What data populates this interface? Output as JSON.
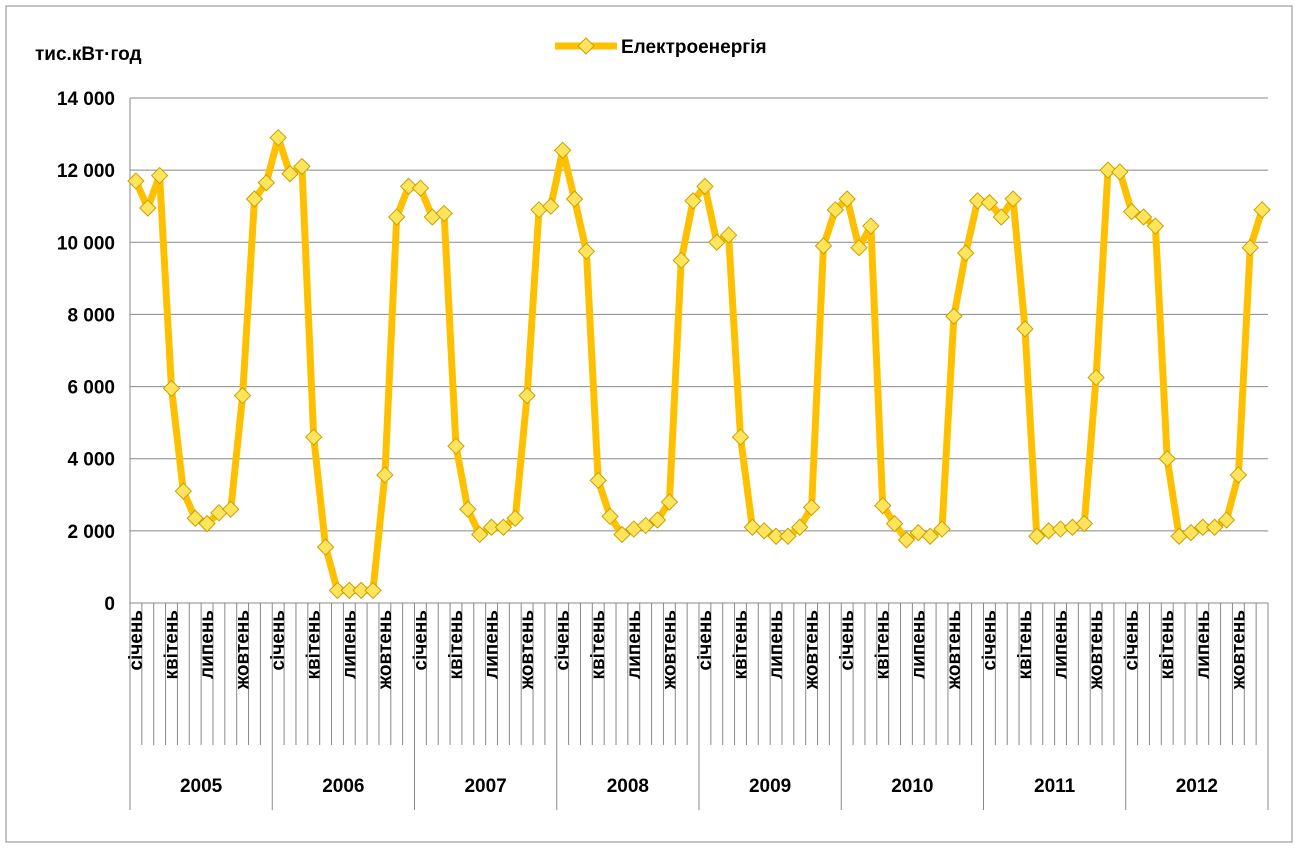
{
  "chart_data": {
    "type": "line",
    "y_axis_label": "тис.кВт·год",
    "categories": [
      "січень",
      null,
      null,
      "квітень",
      null,
      null,
      "липень",
      null,
      null,
      "жовтень",
      null,
      null,
      "січень",
      null,
      null,
      "квітень",
      null,
      null,
      "липень",
      null,
      null,
      "жовтень",
      null,
      null,
      "січень",
      null,
      null,
      "квітень",
      null,
      null,
      "липень",
      null,
      null,
      "жовтень",
      null,
      null,
      "січень",
      null,
      null,
      "квітень",
      null,
      null,
      "липень",
      null,
      null,
      "жовтень",
      null,
      null,
      "січень",
      null,
      null,
      "квітень",
      null,
      null,
      "липень",
      null,
      null,
      "жовтень",
      null,
      null,
      "січень",
      null,
      null,
      "квітень",
      null,
      null,
      "липень",
      null,
      null,
      "жовтень",
      null,
      null,
      "січень",
      null,
      null,
      "квітень",
      null,
      null,
      "липень",
      null,
      null,
      "жовтень",
      null,
      null,
      "січень",
      null,
      null,
      "квітень",
      null,
      null,
      "липень",
      null,
      null,
      "жовтень",
      null,
      null
    ],
    "year_groups": [
      "2005",
      "2006",
      "2007",
      "2008",
      "2009",
      "2010",
      "2011",
      "2012"
    ],
    "series": [
      {
        "name": "Електроенергія",
        "color": "#FFC000",
        "marker_color": "#FFE45C",
        "values": [
          11700,
          10950,
          11850,
          5950,
          3100,
          2350,
          2200,
          2500,
          2600,
          5750,
          11200,
          11650,
          12900,
          11900,
          12100,
          4600,
          1550,
          350,
          350,
          350,
          350,
          3550,
          10700,
          11550,
          11500,
          10700,
          10800,
          4350,
          2600,
          1900,
          2100,
          2100,
          2350,
          5750,
          10900,
          11000,
          12550,
          11200,
          9750,
          3400,
          2400,
          1900,
          2050,
          2150,
          2300,
          2800,
          9500,
          11150,
          11550,
          10000,
          10200,
          4600,
          2100,
          2000,
          1850,
          1850,
          2100,
          2650,
          9900,
          10900,
          11200,
          9850,
          10450,
          2700,
          2200,
          1750,
          1950,
          1850,
          2050,
          7950,
          9700,
          11150,
          11100,
          10700,
          11200,
          7600,
          1850,
          2000,
          2050,
          2100,
          2200,
          6250,
          12000,
          11950,
          10850,
          10700,
          10450,
          4000,
          1850,
          1950,
          2100,
          2100,
          2300,
          3550,
          9850,
          10900
        ]
      }
    ],
    "ylim": [
      0,
      14000
    ],
    "yticks": [
      0,
      {
        "value": 2000,
        "label": "2 000"
      },
      {
        "value": 4000,
        "label": "4 000"
      },
      {
        "value": 6000,
        "label": "6 000"
      },
      {
        "value": 8000,
        "label": "8 000"
      },
      {
        "value": 10000,
        "label": "10 000"
      },
      {
        "value": 12000,
        "label": "12 000"
      },
      {
        "value": 14000,
        "label": "14 000"
      }
    ],
    "grid": true,
    "legend": "top"
  }
}
